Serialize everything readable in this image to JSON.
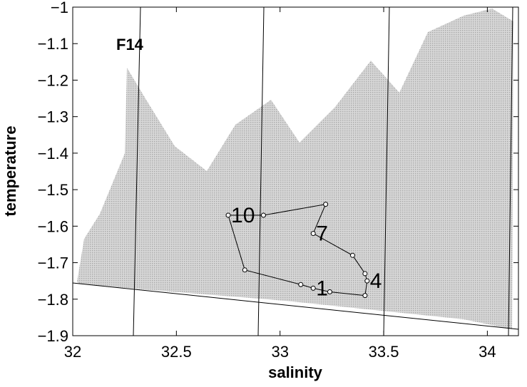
{
  "chart_data": {
    "type": "line",
    "x_label": "salinity",
    "y_label": "temperature",
    "annotation": "F14",
    "xlim": [
      32,
      34.15
    ],
    "ylim": [
      -1.9,
      -1
    ],
    "xticks": [
      32,
      32.5,
      33,
      33.5,
      34
    ],
    "yticks": [
      {
        "value": -1,
        "label": "−1"
      },
      {
        "value": -1.1,
        "label": "−1.1"
      },
      {
        "value": -1.2,
        "label": "−1.2"
      },
      {
        "value": -1.3,
        "label": "−1.3"
      },
      {
        "value": -1.4,
        "label": "−1.4"
      },
      {
        "value": -1.5,
        "label": "−1.5"
      },
      {
        "value": -1.6,
        "label": "−1.6"
      },
      {
        "value": -1.7,
        "label": "−1.7"
      },
      {
        "value": -1.8,
        "label": "−1.8"
      },
      {
        "value": -1.9,
        "label": "−1.9"
      }
    ],
    "x": [
      33.16,
      33.24,
      33.41,
      33.42,
      33.41,
      33.35,
      33.16,
      33.22,
      32.92,
      32.75,
      32.83,
      33.1
    ],
    "values": [
      -1.77,
      -1.78,
      -1.79,
      -1.75,
      -1.73,
      -1.68,
      -1.62,
      -1.54,
      -1.57,
      -1.57,
      -1.72,
      -1.76
    ],
    "point_labels": [
      "1",
      null,
      null,
      "4",
      null,
      null,
      "7",
      null,
      null,
      "10",
      null,
      null
    ],
    "color": "#000000"
  }
}
